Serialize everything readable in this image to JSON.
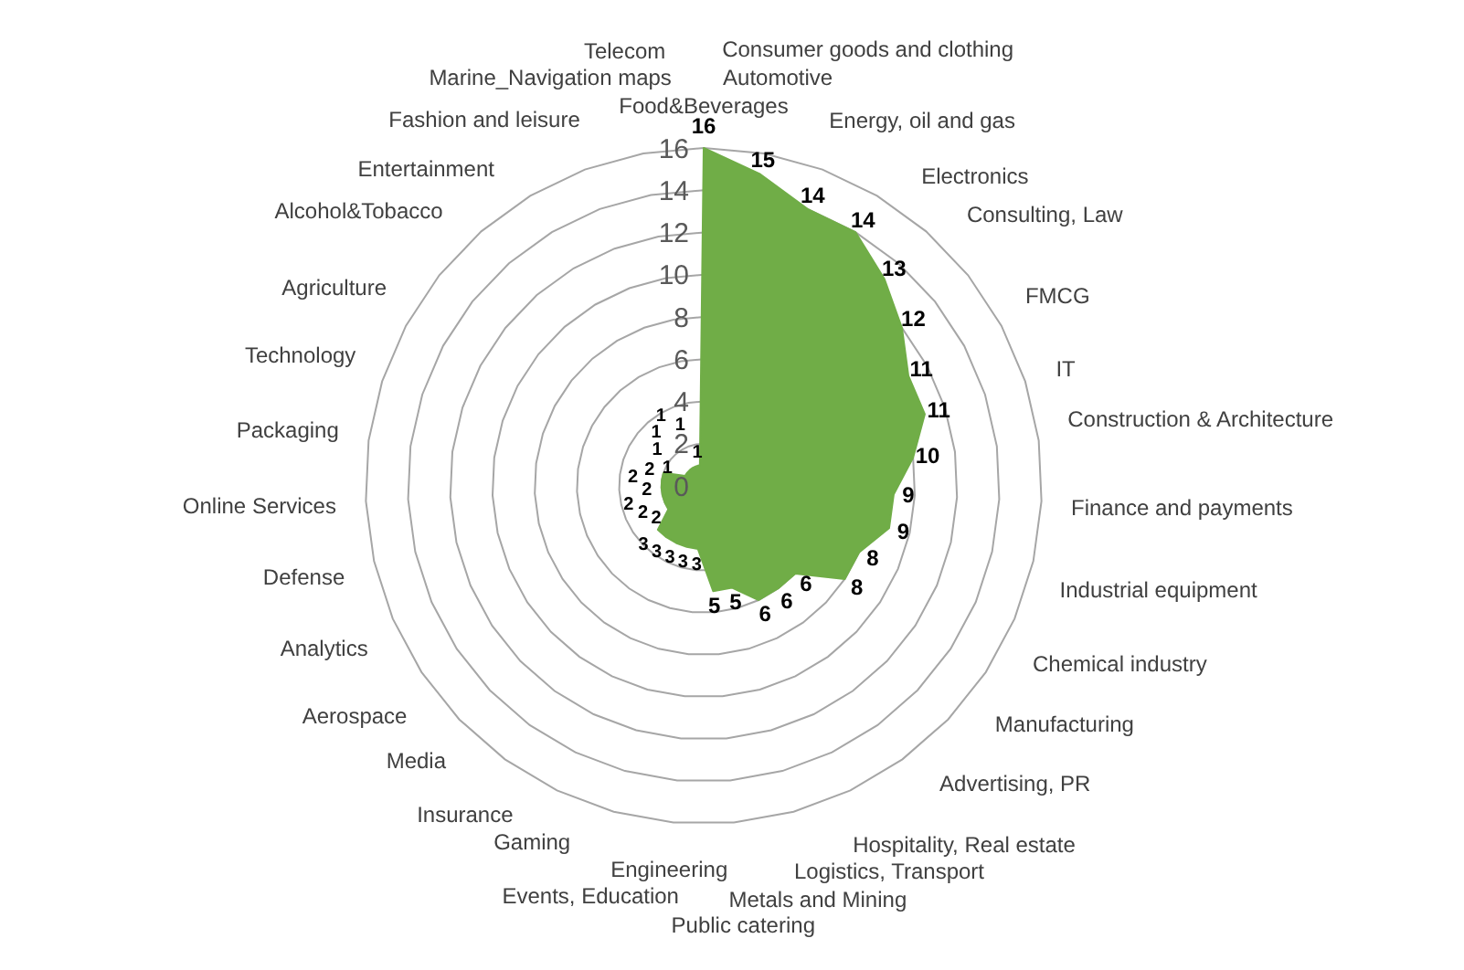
{
  "chart_data": {
    "type": "radar",
    "categories": [
      "Food&Beverages",
      "Automotive",
      "Consumer goods and clothing",
      "Energy, oil and gas",
      "Electronics",
      "Consulting, Law",
      "FMCG",
      "IT",
      "Construction & Architecture",
      "Finance and payments",
      "Industrial equipment",
      "Chemical industry",
      "Manufacturing",
      "Advertising, PR",
      "Hospitality, Real estate",
      "Logistics, Transport",
      "Metals and Mining",
      "Public catering",
      "Engineering",
      "Events, Education",
      "Gaming",
      "Insurance",
      "Media",
      "Aerospace",
      "Analytics",
      "Defense",
      "Online Services",
      "Packaging",
      "Technology",
      "Agriculture",
      "Alcohol&Tobacco",
      "Entertainment",
      "Fashion and leisure",
      "Marine_Navigation maps",
      "Telecom"
    ],
    "series": [
      {
        "color": "#70ad47",
        "values": [
          16,
          15,
          14,
          14,
          13,
          12,
          11,
          11,
          10,
          9,
          9,
          8,
          8,
          6,
          6,
          6,
          5,
          5,
          3,
          3,
          3,
          3,
          3,
          2,
          2,
          2,
          2,
          2,
          2,
          1,
          1,
          1,
          1,
          1,
          1
        ]
      }
    ],
    "ylim": [
      0,
      16
    ],
    "yticks": [
      0,
      2,
      4,
      6,
      8,
      10,
      12,
      14,
      16
    ],
    "data_labels": true,
    "legend": false,
    "grid": true
  }
}
